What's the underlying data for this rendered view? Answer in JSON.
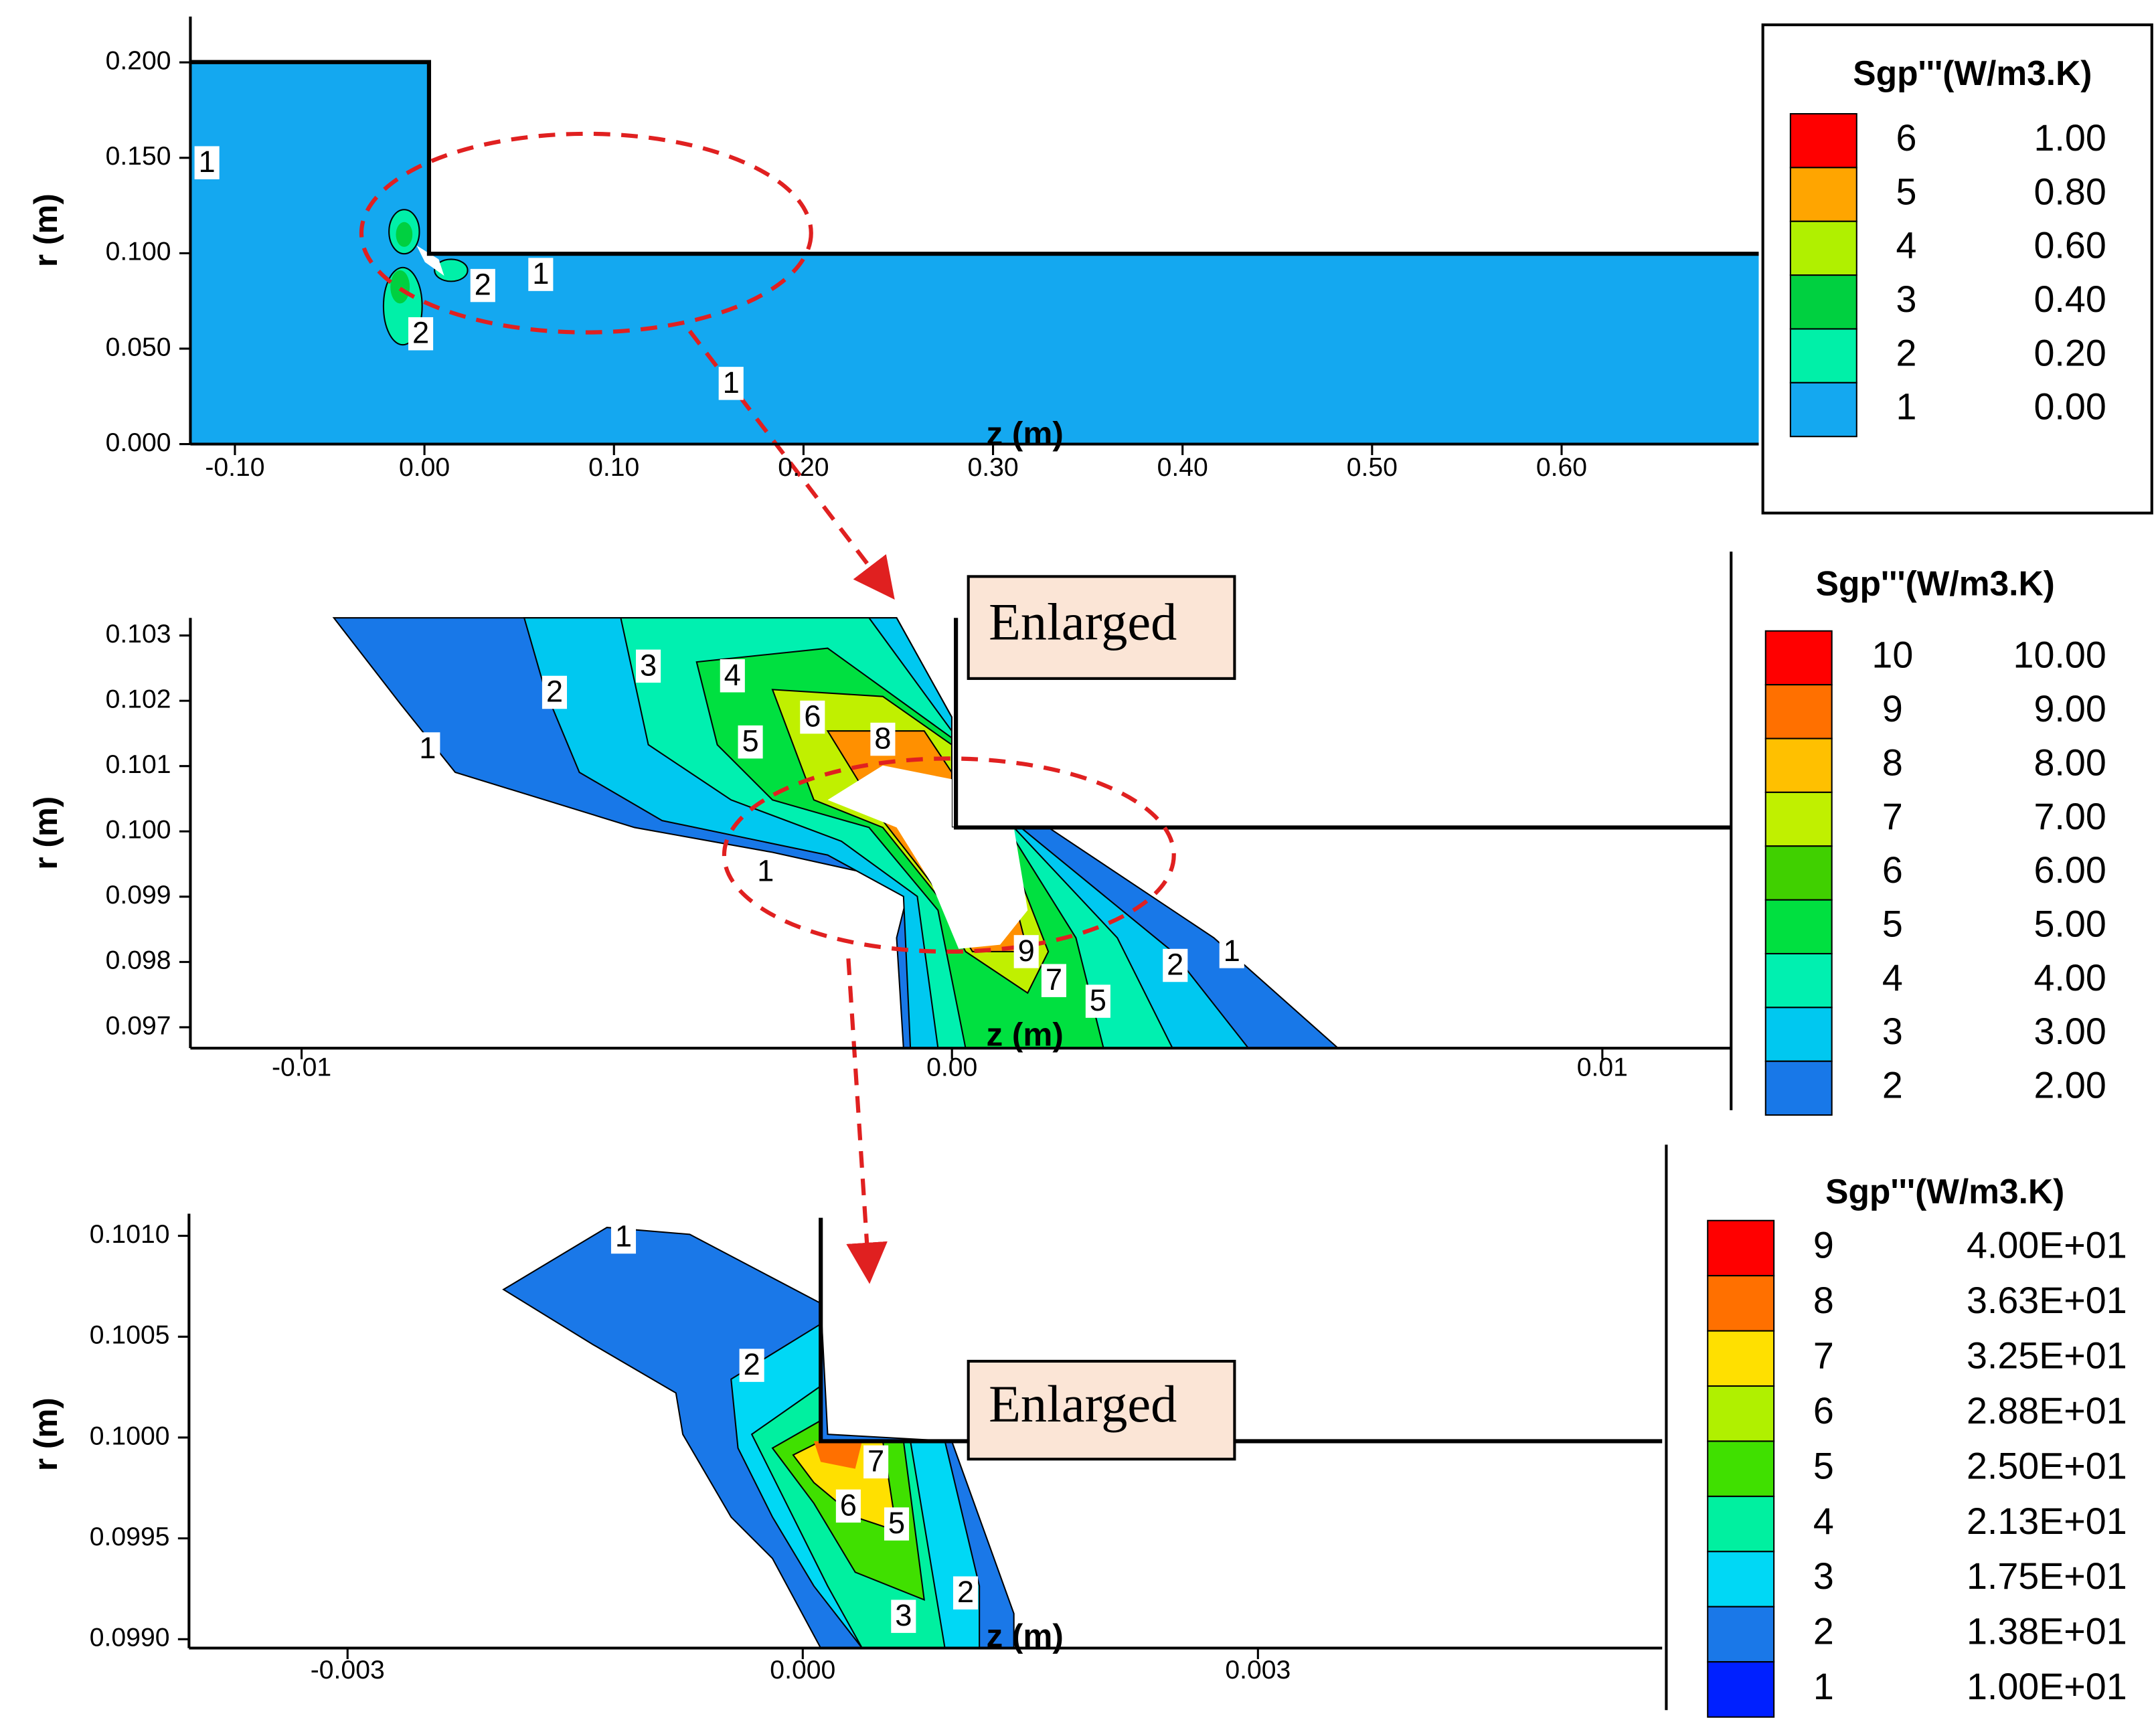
{
  "chart_data": [
    {
      "type": "contour",
      "xlabel": "z (m)",
      "ylabel": "r (m)",
      "xlim": [
        -0.1235,
        0.704
      ],
      "ylim": [
        0,
        0.224
      ],
      "xticks": [
        {
          "value": -0.1,
          "label": "-0.10"
        },
        {
          "value": 0,
          "label": "0.00"
        },
        {
          "value": 0.1,
          "label": "0.10"
        },
        {
          "value": 0.2,
          "label": "0.20"
        },
        {
          "value": 0.3,
          "label": "0.30"
        },
        {
          "value": 0.4,
          "label": "0.40"
        },
        {
          "value": 0.5,
          "label": "0.50"
        },
        {
          "value": 0.6,
          "label": "0.60"
        }
      ],
      "yticks": [
        {
          "value": 0,
          "label": "0.000"
        },
        {
          "value": 0.05,
          "label": "0.050"
        },
        {
          "value": 0.1,
          "label": "0.100"
        },
        {
          "value": 0.15,
          "label": "0.150"
        },
        {
          "value": 0.2,
          "label": "0.200"
        }
      ],
      "legend": {
        "title": "Sgp'''(W/m3.K)",
        "levels": [
          6,
          5,
          4,
          3,
          2,
          1
        ],
        "values": [
          1,
          0.8,
          0.6,
          0.4,
          0.2,
          0
        ],
        "value_labels": [
          "1.00",
          "0.80",
          "0.60",
          "0.40",
          "0.20",
          "0.00"
        ],
        "colors": [
          "#ff0000",
          "#ffa500",
          "#b0f000",
          "#00d040",
          "#00f0a8",
          "#14a8f0"
        ]
      },
      "contour_labels": [
        "1",
        "1",
        "2",
        "2",
        "1"
      ]
    },
    {
      "type": "contour",
      "xlabel": "z (m)",
      "ylabel": "r (m)",
      "annotation": "Enlarged",
      "xlim": [
        -0.01171,
        0.01198
      ],
      "ylim": [
        0.09668,
        0.10327
      ],
      "xticks": [
        -0.01,
        {
          "value": 0,
          "label": "0.00"
        },
        0.01
      ],
      "yticks": [
        0.097,
        0.098,
        0.099,
        {
          "value": 0.1,
          "label": "0.100"
        },
        0.101,
        0.102,
        0.103
      ],
      "legend": {
        "title": "Sgp'''(W/m3.K)",
        "levels": [
          10,
          9,
          8,
          7,
          6,
          5,
          4,
          3,
          2
        ],
        "values": [
          10,
          9,
          8,
          7,
          6,
          5,
          4,
          3,
          2
        ],
        "value_labels": [
          "10.00",
          "9.00",
          "8.00",
          "7.00",
          "6.00",
          "5.00",
          "4.00",
          "3.00",
          "2.00"
        ],
        "colors": [
          "#ff0000",
          "#ff7000",
          "#ffc000",
          "#c0f000",
          "#40d000",
          "#00e040",
          "#00f0b0",
          "#00c8f0",
          "#1878e8"
        ]
      },
      "contour_labels": [
        "1",
        "2",
        "3",
        "4",
        "5",
        "6",
        "8",
        "1",
        "9",
        "7",
        "5",
        "2",
        "1"
      ]
    },
    {
      "type": "contour",
      "xlabel": "z (m)",
      "ylabel": "r (m)",
      "annotation": "Enlarged",
      "xlim": [
        -0.004045,
        0.005664
      ],
      "ylim": [
        0.098956,
        0.10111
      ],
      "xticks": [
        -0.003,
        {
          "value": 0,
          "label": "0.000"
        },
        0.003
      ],
      "yticks": [
        {
          "value": 0.099,
          "label": "0.0990"
        },
        {
          "value": 0.0995,
          "label": "0.0995"
        },
        {
          "value": 0.1,
          "label": "0.1000"
        },
        {
          "value": 0.1005,
          "label": "0.1005"
        },
        {
          "value": 0.101,
          "label": "0.1010"
        }
      ],
      "legend": {
        "title": "Sgp'''(W/m3.K)",
        "levels": [
          9,
          8,
          7,
          6,
          5,
          4,
          3,
          2,
          1
        ],
        "values": [
          40,
          36.3,
          32.5,
          28.8,
          25,
          21.3,
          17.5,
          13.8,
          10
        ],
        "value_labels": [
          "4.00E+01",
          "3.63E+01",
          "3.25E+01",
          "2.88E+01",
          "2.50E+01",
          "2.13E+01",
          "1.75E+01",
          "1.38E+01",
          "1.00E+01"
        ],
        "colors": [
          "#ff0000",
          "#ff7000",
          "#ffe000",
          "#b0f000",
          "#40e000",
          "#00f0a0",
          "#00d8f5",
          "#1a78e8",
          "#0020ff"
        ]
      },
      "contour_labels": [
        "1",
        "2",
        "7",
        "6",
        "5",
        "3",
        "2"
      ]
    }
  ]
}
